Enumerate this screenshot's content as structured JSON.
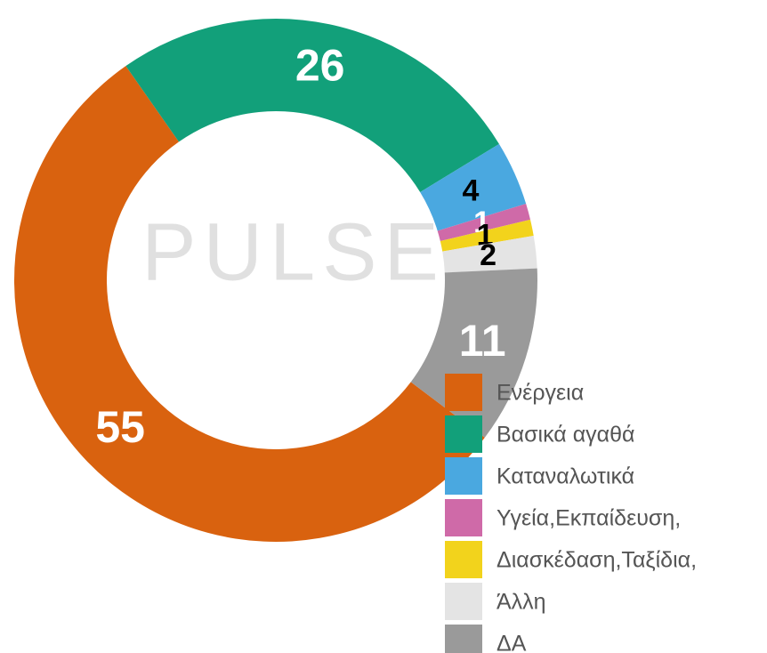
{
  "chart_data": {
    "type": "donut",
    "watermark": "PULSE",
    "categories": [
      "Ενέργεια",
      "Βασικά αγαθά",
      "Καταναλωτικά",
      "Υγεία,Εκπαίδευση,",
      "Διασκέδαση,Ταξίδια,",
      "Άλλη",
      "ΔΑ"
    ],
    "values": [
      55,
      26,
      4,
      1,
      1,
      2,
      11
    ],
    "colors": [
      "#d9620f",
      "#12a07a",
      "#4aa8e0",
      "#cf6aa8",
      "#f2d31c",
      "#e4e4e4",
      "#9a9a9a"
    ],
    "legend": "bottom-right"
  }
}
